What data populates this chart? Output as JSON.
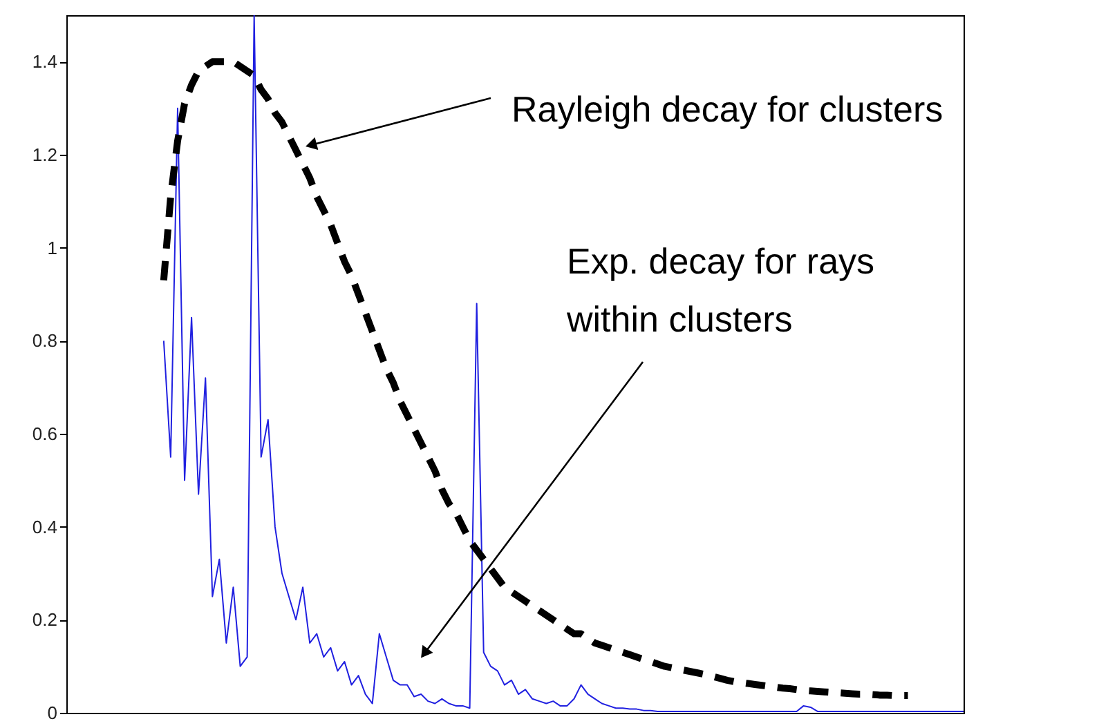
{
  "chart_data": {
    "type": "line",
    "ylim": [
      0,
      1.5
    ],
    "categories": [
      null,
      null,
      null,
      null,
      null,
      null,
      null,
      null,
      null,
      null,
      null,
      null,
      null,
      null,
      null,
      null,
      null,
      null,
      null,
      null,
      null,
      null,
      null,
      null,
      null,
      null,
      null,
      null,
      null,
      null,
      null,
      null,
      null,
      null,
      null,
      null,
      null,
      null,
      null,
      null,
      null,
      null,
      null,
      null,
      null,
      null,
      null,
      null,
      null,
      null,
      null,
      null,
      null,
      null,
      null,
      null,
      null,
      null,
      null,
      null,
      null,
      null,
      null,
      null,
      null,
      null,
      null,
      null,
      null,
      null,
      null,
      null,
      null,
      null,
      null,
      null,
      null,
      null,
      null,
      null,
      null,
      null,
      null,
      null,
      null,
      null,
      null,
      null,
      null,
      null,
      null,
      null,
      null,
      null,
      null,
      null,
      null,
      null,
      null,
      null,
      null,
      null,
      null,
      null,
      null,
      null,
      null,
      null,
      null,
      null,
      null,
      null,
      null,
      null,
      null,
      null,
      null,
      null,
      null,
      null,
      null,
      null,
      null,
      null,
      null,
      null,
      null,
      null,
      null,
      null
    ],
    "yticks": [
      0,
      0.2,
      0.4,
      0.6,
      0.8,
      1,
      1.2,
      1.4
    ],
    "tick_labels": "y",
    "series": [
      {
        "color": "#2020e0",
        "line_style": "solid",
        "values": [
          null,
          null,
          null,
          null,
          null,
          null,
          null,
          null,
          null,
          null,
          null,
          null,
          null,
          null,
          0.8,
          0.55,
          1.3,
          0.5,
          0.85,
          0.47,
          0.72,
          0.25,
          0.33,
          0.15,
          0.27,
          0.1,
          0.12,
          1.5,
          0.55,
          0.63,
          0.4,
          0.3,
          0.25,
          0.2,
          0.27,
          0.15,
          0.17,
          0.12,
          0.14,
          0.09,
          0.11,
          0.06,
          0.08,
          0.04,
          0.02,
          0.17,
          0.12,
          0.07,
          0.06,
          0.06,
          0.035,
          0.04,
          0.025,
          0.02,
          0.03,
          0.02,
          0.015,
          0.015,
          0.01,
          0.88,
          0.13,
          0.1,
          0.09,
          0.06,
          0.07,
          0.04,
          0.05,
          0.03,
          0.025,
          0.02,
          0.025,
          0.015,
          0.015,
          0.03,
          0.06,
          0.04,
          0.03,
          0.02,
          0.015,
          0.01,
          0.01,
          0.008,
          0.008,
          0.005,
          0.005,
          0.003,
          0.003,
          0.003,
          0.003,
          0.003,
          0.003,
          0.003,
          0.003,
          0.003,
          0.003,
          0.003,
          0.003,
          0.003,
          0.003,
          0.003,
          0.003,
          0.003,
          0.003,
          0.003,
          0.003,
          0.003,
          0.015,
          0.012,
          0.003,
          0.003,
          0.003,
          0.003,
          0.003,
          0.003,
          0.003,
          0.003,
          0.003,
          0.003,
          0.003,
          0.003,
          0.003,
          0.003,
          0.003,
          0.003,
          0.003,
          0.003,
          0.003,
          0.003,
          0.003,
          0.003
        ]
      },
      {
        "color": "#000000",
        "line_style": "dashed",
        "values": [
          null,
          null,
          null,
          null,
          null,
          null,
          null,
          null,
          null,
          null,
          null,
          null,
          null,
          null,
          0.93,
          1.11,
          1.23,
          1.31,
          1.35,
          1.38,
          1.39,
          1.4,
          1.4,
          1.4,
          1.4,
          1.39,
          1.38,
          1.37,
          1.34,
          1.32,
          1.29,
          1.27,
          1.24,
          1.21,
          1.18,
          1.15,
          1.11,
          1.08,
          1.05,
          1.01,
          0.97,
          0.94,
          0.9,
          0.86,
          0.82,
          0.78,
          0.74,
          0.71,
          0.67,
          0.64,
          0.61,
          0.58,
          0.55,
          0.52,
          0.48,
          0.45,
          0.43,
          0.4,
          0.37,
          0.35,
          0.33,
          0.31,
          0.29,
          0.27,
          0.26,
          0.25,
          0.24,
          0.23,
          0.22,
          0.21,
          0.2,
          0.19,
          0.18,
          0.17,
          0.17,
          0.16,
          0.15,
          0.145,
          0.14,
          0.135,
          0.13,
          0.125,
          0.12,
          0.115,
          0.11,
          0.105,
          0.1,
          0.097,
          0.094,
          0.091,
          0.088,
          0.085,
          0.082,
          0.078,
          0.074,
          0.07,
          0.067,
          0.065,
          0.063,
          0.061,
          0.059,
          0.057,
          0.055,
          0.053,
          0.052,
          0.05,
          0.048,
          0.047,
          0.046,
          0.045,
          0.044,
          0.043,
          0.042,
          0.041,
          0.04,
          0.04,
          0.039,
          0.038,
          0.038,
          0.037,
          0.037,
          0.037,
          null,
          null,
          null,
          null,
          null,
          null,
          null,
          null
        ]
      }
    ],
    "annotations": [
      "Rayleigh decay for clusters",
      "Exp. decay for rays\nwithin clusters"
    ]
  }
}
